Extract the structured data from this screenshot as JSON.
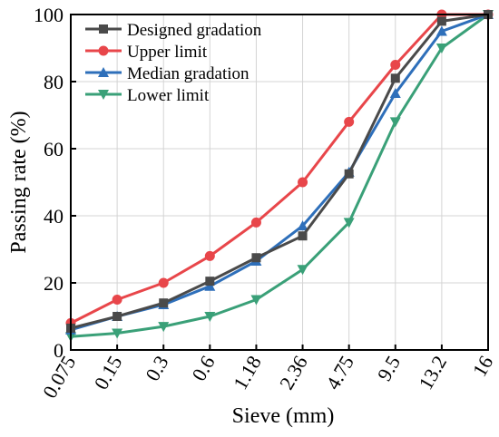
{
  "chart_data": {
    "type": "line",
    "title": "",
    "xlabel": "Sieve (mm)",
    "ylabel": "Passing rate (%)",
    "categories": [
      "0.075",
      "0.15",
      "0.3",
      "0.6",
      "1.18",
      "2.36",
      "4.75",
      "9.5",
      "13.2",
      "16"
    ],
    "ylim": [
      0,
      100
    ],
    "yticks": [
      "0",
      "20",
      "40",
      "60",
      "80",
      "100"
    ],
    "grid": true,
    "legend_position": "top-left",
    "series": [
      {
        "name": "Designed gradation",
        "color": "#4a4a4a",
        "marker": "square",
        "values": [
          6.5,
          10,
          14,
          20.5,
          27.5,
          34,
          52.5,
          81,
          98,
          100
        ]
      },
      {
        "name": "Upper limit",
        "color": "#e8464a",
        "marker": "circle",
        "values": [
          8,
          15,
          20,
          28,
          38,
          50,
          68,
          85,
          100,
          100
        ]
      },
      {
        "name": "Median gradation",
        "color": "#2e6fba",
        "marker": "triangle-up",
        "values": [
          6,
          10,
          13.5,
          19,
          26.5,
          37,
          53,
          76.5,
          95,
          100
        ]
      },
      {
        "name": "Lower limit",
        "color": "#3aa078",
        "marker": "triangle-down",
        "values": [
          4,
          5,
          7,
          10,
          15,
          24,
          38,
          68,
          90,
          100
        ]
      }
    ]
  }
}
